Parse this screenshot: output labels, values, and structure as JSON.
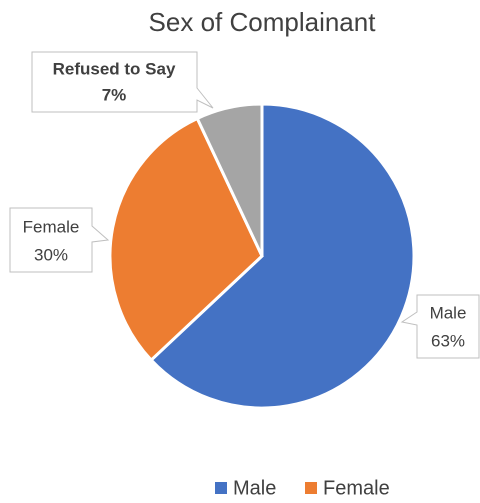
{
  "chart_data": {
    "type": "pie",
    "title": "Sex of Complainant",
    "categories": [
      "Male",
      "Female",
      "Refused to Say"
    ],
    "values": [
      63,
      30,
      7
    ],
    "value_labels": [
      "63%",
      "30%",
      "7%"
    ],
    "colors": [
      "#4472c4",
      "#ed7d31",
      "#a5a5a5"
    ],
    "legend": "bottom"
  }
}
